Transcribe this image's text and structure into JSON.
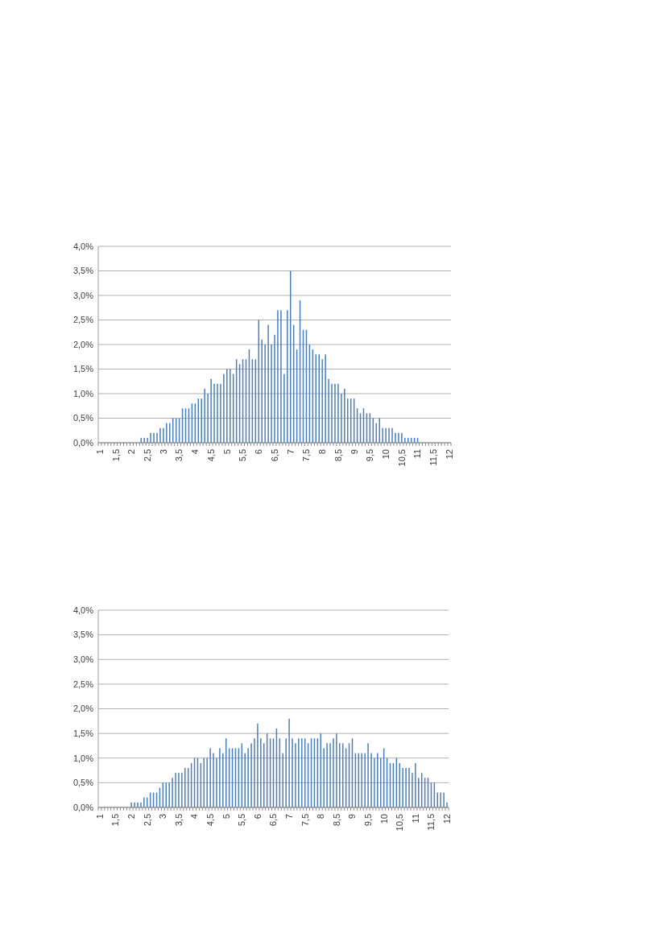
{
  "chart_data": [
    {
      "type": "bar",
      "color": "#4a7ebb",
      "grid": "y",
      "categories": [
        "1",
        null,
        null,
        null,
        null,
        "1,5",
        null,
        null,
        null,
        null,
        "2",
        null,
        null,
        null,
        null,
        "2,5",
        null,
        null,
        null,
        null,
        "3",
        null,
        null,
        null,
        null,
        "3,5",
        null,
        null,
        null,
        null,
        "4",
        null,
        null,
        null,
        null,
        "4,5",
        null,
        null,
        null,
        null,
        "5",
        null,
        null,
        null,
        null,
        "5,5",
        null,
        null,
        null,
        null,
        "6",
        null,
        null,
        null,
        null,
        "6,5",
        null,
        null,
        null,
        null,
        "7",
        null,
        null,
        null,
        null,
        "7,5",
        null,
        null,
        null,
        null,
        "8",
        null,
        null,
        null,
        null,
        "8,5",
        null,
        null,
        null,
        null,
        "9",
        null,
        null,
        null,
        null,
        "9,5",
        null,
        null,
        null,
        null,
        "10",
        null,
        null,
        null,
        null,
        "10,5",
        null,
        null,
        null,
        null,
        "11",
        null,
        null,
        null,
        null,
        "11,5",
        null,
        null,
        null,
        null,
        "12"
      ],
      "values": [
        0,
        0,
        0,
        0,
        0,
        0,
        0,
        0,
        0,
        0,
        0,
        0,
        0,
        0.1,
        0.1,
        0.1,
        0.2,
        0.2,
        0.2,
        0.3,
        0.3,
        0.4,
        0.4,
        0.5,
        0.5,
        0.5,
        0.7,
        0.7,
        0.7,
        0.8,
        0.8,
        0.9,
        0.9,
        1.1,
        1.0,
        1.3,
        1.2,
        1.2,
        1.2,
        1.4,
        1.5,
        1.5,
        1.4,
        1.7,
        1.6,
        1.7,
        1.7,
        1.9,
        1.7,
        1.7,
        2.5,
        2.1,
        2.0,
        2.4,
        2.0,
        2.2,
        2.7,
        2.7,
        1.4,
        2.7,
        3.5,
        2.4,
        1.9,
        2.9,
        2.3,
        2.3,
        2.0,
        1.9,
        1.8,
        1.8,
        1.7,
        1.8,
        1.3,
        1.2,
        1.2,
        1.2,
        1.0,
        1.1,
        0.9,
        0.9,
        0.9,
        0.7,
        0.6,
        0.7,
        0.6,
        0.6,
        0.5,
        0.4,
        0.5,
        0.3,
        0.3,
        0.3,
        0.3,
        0.2,
        0.2,
        0.2,
        0.1,
        0.1,
        0.1,
        0.1,
        0.1,
        0,
        0,
        0,
        0,
        0,
        0,
        0,
        0,
        0,
        0
      ],
      "ylim": [
        0,
        4
      ],
      "yticks": [
        {
          "value": 0,
          "label": "0,0%"
        },
        {
          "value": 0.5,
          "label": "0,5%"
        },
        {
          "value": 1,
          "label": "1,0%"
        },
        {
          "value": 1.5,
          "label": "1,5%"
        },
        {
          "value": 2,
          "label": "2,0%"
        },
        {
          "value": 2.5,
          "label": "2,5%"
        },
        {
          "value": 3,
          "label": "3,0%"
        },
        {
          "value": 3.5,
          "label": "3,5%"
        },
        {
          "value": 4,
          "label": "4,0%"
        }
      ]
    },
    {
      "type": "bar",
      "color": "#4a7ebb",
      "grid": "y",
      "categories": [
        "1",
        null,
        null,
        null,
        null,
        "1,5",
        null,
        null,
        null,
        null,
        "2",
        null,
        null,
        null,
        null,
        "2,5",
        null,
        null,
        null,
        null,
        "3",
        null,
        null,
        null,
        null,
        "3,5",
        null,
        null,
        null,
        null,
        "4",
        null,
        null,
        null,
        null,
        "4,5",
        null,
        null,
        null,
        null,
        "5",
        null,
        null,
        null,
        null,
        "5,5",
        null,
        null,
        null,
        null,
        "6",
        null,
        null,
        null,
        null,
        "6,5",
        null,
        null,
        null,
        null,
        "7",
        null,
        null,
        null,
        null,
        "7,5",
        null,
        null,
        null,
        null,
        "8",
        null,
        null,
        null,
        null,
        "8,5",
        null,
        null,
        null,
        null,
        "9",
        null,
        null,
        null,
        null,
        "9,5",
        null,
        null,
        null,
        null,
        "10",
        null,
        null,
        null,
        null,
        "10,5",
        null,
        null,
        null,
        null,
        "11",
        null,
        null,
        null,
        null,
        "11,5",
        null,
        null,
        null,
        null,
        "12"
      ],
      "values": [
        0,
        0,
        0,
        0,
        0,
        0,
        0,
        0,
        0,
        0,
        0.1,
        0.1,
        0.1,
        0.1,
        0.2,
        0.2,
        0.3,
        0.3,
        0.3,
        0.4,
        0.5,
        0.5,
        0.5,
        0.6,
        0.7,
        0.7,
        0.7,
        0.8,
        0.8,
        0.9,
        1.0,
        1.0,
        0.9,
        1.0,
        1.0,
        1.2,
        1.1,
        1.0,
        1.2,
        1.1,
        1.4,
        1.2,
        1.2,
        1.2,
        1.2,
        1.3,
        1.1,
        1.2,
        1.3,
        1.4,
        1.7,
        1.4,
        1.3,
        1.5,
        1.4,
        1.4,
        1.6,
        1.4,
        1.1,
        1.4,
        1.8,
        1.4,
        1.3,
        1.4,
        1.4,
        1.4,
        1.3,
        1.4,
        1.4,
        1.4,
        1.5,
        1.2,
        1.3,
        1.3,
        1.4,
        1.5,
        1.3,
        1.3,
        1.2,
        1.3,
        1.4,
        1.1,
        1.1,
        1.1,
        1.1,
        1.3,
        1.1,
        1.0,
        1.1,
        1.0,
        1.2,
        1.0,
        0.9,
        0.9,
        1.0,
        0.9,
        0.8,
        0.8,
        0.8,
        0.7,
        0.9,
        0.6,
        0.7,
        0.6,
        0.6,
        0.5,
        0.5,
        0.3,
        0.3,
        0.3,
        0.1
      ],
      "ylim": [
        0,
        4
      ],
      "yticks": [
        {
          "value": 0,
          "label": "0,0%"
        },
        {
          "value": 0.5,
          "label": "0,5%"
        },
        {
          "value": 1,
          "label": "1,0%"
        },
        {
          "value": 1.5,
          "label": "1,5%"
        },
        {
          "value": 2,
          "label": "2,0%"
        },
        {
          "value": 2.5,
          "label": "2,5%"
        },
        {
          "value": 3,
          "label": "3,0%"
        },
        {
          "value": 3.5,
          "label": "3,5%"
        },
        {
          "value": 4,
          "label": "4,0%"
        }
      ]
    }
  ]
}
